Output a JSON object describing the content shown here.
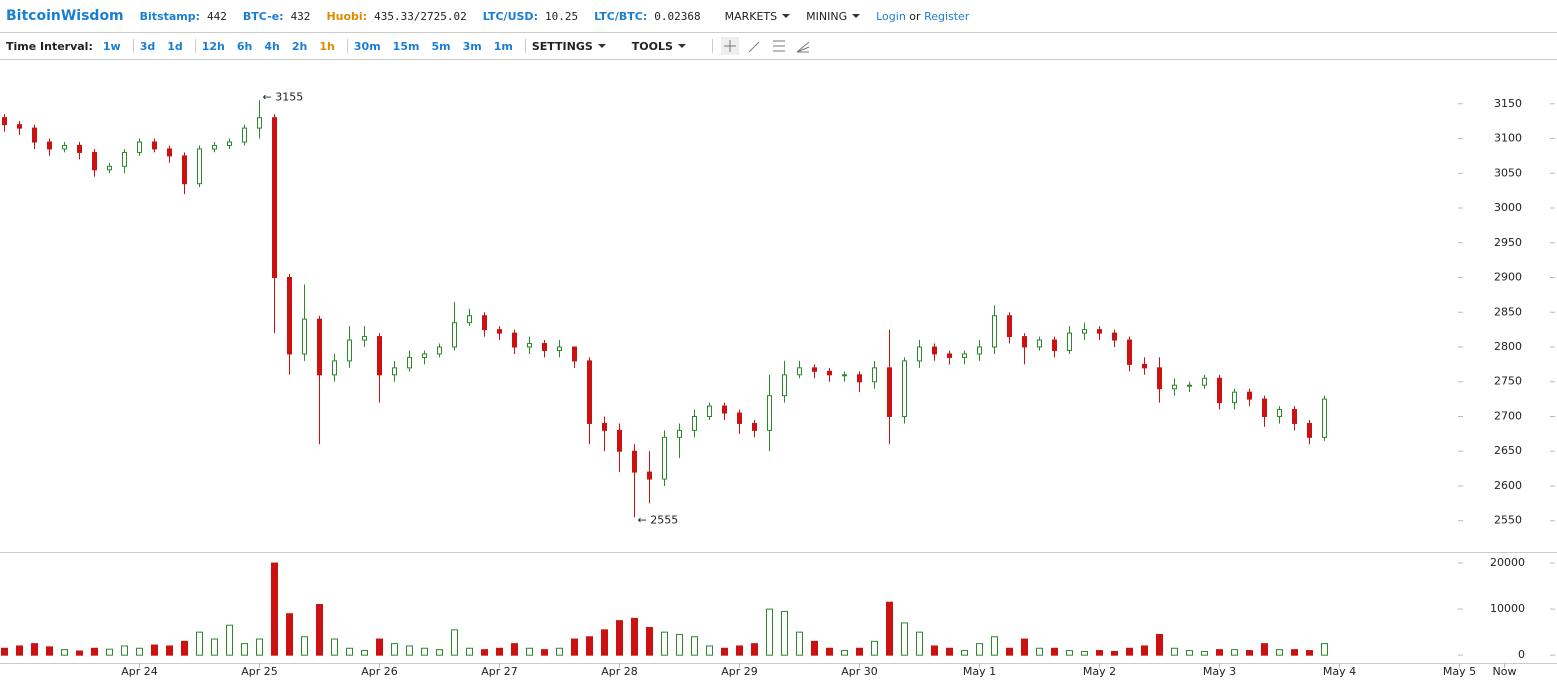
{
  "header": {
    "brand": "BitcoinWisdom",
    "quotes": [
      {
        "label": "Bitstamp:",
        "value": "442"
      },
      {
        "label": "BTC-e:",
        "value": "432"
      },
      {
        "label": "Huobi:",
        "value": "435.33/2725.02"
      },
      {
        "label": "LTC/USD:",
        "value": "10.25"
      },
      {
        "label": "LTC/BTC:",
        "value": "0.02368"
      }
    ],
    "menus": [
      "MARKETS",
      "MINING"
    ],
    "login": "Login",
    "or": "or",
    "register": "Register"
  },
  "toolbar": {
    "label": "Time Interval:",
    "intervals": [
      "1w",
      "3d",
      "1d",
      "12h",
      "6h",
      "4h",
      "2h",
      "1h",
      "30m",
      "15m",
      "5m",
      "3m",
      "1m"
    ],
    "selected": "1h",
    "settings": "SETTINGS",
    "tools": "TOOLS"
  },
  "chart_data": {
    "type": "candlestick",
    "up_color": "#2a8a2a",
    "down_color": "#cc1111",
    "xlim": [
      -0.3,
      103.5
    ],
    "xticks": [
      {
        "value": 9,
        "label": "Apr 24"
      },
      {
        "value": 17,
        "label": "Apr 25"
      },
      {
        "value": 25,
        "label": "Apr 26"
      },
      {
        "value": 33,
        "label": "Apr 27"
      },
      {
        "value": 41,
        "label": "Apr 28"
      },
      {
        "value": 49,
        "label": "Apr 29"
      },
      {
        "value": 57,
        "label": "Apr 30"
      },
      {
        "value": 65,
        "label": "May 1"
      },
      {
        "value": 73,
        "label": "May 2"
      },
      {
        "value": 81,
        "label": "May 3"
      },
      {
        "value": 89,
        "label": "May 4"
      },
      {
        "value": 97,
        "label": "May 5"
      },
      {
        "value": 100,
        "label": "Now"
      }
    ],
    "ylim": [
      2505,
      3213
    ],
    "yticks": [
      2550,
      2600,
      2650,
      2700,
      2750,
      2800,
      2850,
      2900,
      2950,
      3000,
      3050,
      3100,
      3150
    ],
    "y2lim": [
      -1700,
      22400
    ],
    "y2ticks": [
      0,
      10000,
      20000
    ],
    "annotations": [
      {
        "label": "← 3155",
        "value": 3155
      },
      {
        "label": "← 2555",
        "value": 2555
      }
    ],
    "open": [
      3130,
      3120,
      3115,
      3095,
      3085,
      3090,
      3080,
      3055,
      3060,
      3080,
      3095,
      3085,
      3075,
      3035,
      3085,
      3090,
      3095,
      3115,
      3130,
      2900,
      2790,
      2840,
      2760,
      2780,
      2810,
      2815,
      2760,
      2770,
      2785,
      2790,
      2800,
      2835,
      2845,
      2825,
      2820,
      2800,
      2805,
      2795,
      2800,
      2780,
      2690,
      2680,
      2650,
      2620,
      2610,
      2670,
      2680,
      2700,
      2715,
      2705,
      2690,
      2680,
      2730,
      2760,
      2770,
      2765,
      2760,
      2760,
      2750,
      2770,
      2700,
      2780,
      2800,
      2790,
      2785,
      2790,
      2800,
      2845,
      2815,
      2800,
      2810,
      2795,
      2820,
      2825,
      2820,
      2810,
      2775,
      2770,
      2740,
      2745,
      2745,
      2755,
      2720,
      2735,
      2725,
      2700,
      2710,
      2690,
      2670
    ],
    "high": [
      3135,
      3125,
      3120,
      3100,
      3095,
      3095,
      3085,
      3065,
      3085,
      3100,
      3100,
      3090,
      3080,
      3090,
      3095,
      3100,
      3120,
      3155,
      3135,
      2905,
      2890,
      2845,
      2790,
      2830,
      2830,
      2820,
      2780,
      2795,
      2795,
      2805,
      2865,
      2855,
      2850,
      2830,
      2825,
      2815,
      2810,
      2810,
      2800,
      2785,
      2700,
      2690,
      2660,
      2650,
      2680,
      2690,
      2710,
      2720,
      2720,
      2710,
      2695,
      2760,
      2780,
      2780,
      2775,
      2770,
      2765,
      2765,
      2780,
      2825,
      2785,
      2810,
      2805,
      2795,
      2795,
      2810,
      2860,
      2850,
      2820,
      2815,
      2815,
      2830,
      2835,
      2830,
      2825,
      2815,
      2785,
      2785,
      2755,
      2750,
      2760,
      2760,
      2740,
      2740,
      2730,
      2715,
      2715,
      2695,
      2730
    ],
    "low": [
      3110,
      3105,
      3085,
      3075,
      3080,
      3070,
      3045,
      3050,
      3050,
      3075,
      3080,
      3065,
      3020,
      3030,
      3080,
      3085,
      3090,
      3100,
      2820,
      2760,
      2780,
      2660,
      2750,
      2770,
      2800,
      2720,
      2750,
      2765,
      2775,
      2785,
      2795,
      2830,
      2815,
      2810,
      2790,
      2790,
      2785,
      2785,
      2770,
      2660,
      2650,
      2620,
      2555,
      2575,
      2600,
      2640,
      2670,
      2695,
      2695,
      2675,
      2670,
      2650,
      2720,
      2755,
      2755,
      2750,
      2750,
      2735,
      2740,
      2660,
      2690,
      2770,
      2780,
      2775,
      2775,
      2780,
      2790,
      2805,
      2775,
      2795,
      2785,
      2790,
      2810,
      2810,
      2800,
      2765,
      2760,
      2720,
      2730,
      2735,
      2740,
      2710,
      2710,
      2715,
      2685,
      2690,
      2680,
      2660,
      2665
    ],
    "close": [
      3120,
      3115,
      3095,
      3085,
      3090,
      3080,
      3055,
      3060,
      3080,
      3095,
      3085,
      3075,
      3035,
      3085,
      3090,
      3095,
      3115,
      3130,
      2900,
      2790,
      2840,
      2760,
      2780,
      2810,
      2815,
      2760,
      2770,
      2785,
      2790,
      2800,
      2835,
      2845,
      2825,
      2820,
      2800,
      2805,
      2795,
      2800,
      2780,
      2690,
      2680,
      2650,
      2620,
      2610,
      2670,
      2680,
      2700,
      2715,
      2705,
      2690,
      2680,
      2730,
      2760,
      2770,
      2765,
      2760,
      2760,
      2750,
      2770,
      2700,
      2780,
      2800,
      2790,
      2785,
      2790,
      2800,
      2845,
      2815,
      2800,
      2810,
      2795,
      2820,
      2825,
      2820,
      2810,
      2775,
      2770,
      2740,
      2745,
      2745,
      2755,
      2720,
      2735,
      2725,
      2700,
      2710,
      2690,
      2670,
      2725
    ],
    "volume": [
      1500,
      2000,
      2500,
      1800,
      1200,
      900,
      1500,
      1300,
      2000,
      1500,
      2200,
      2000,
      3000,
      5000,
      3500,
      6500,
      2500,
      3500,
      20000,
      9000,
      4000,
      11000,
      3500,
      1500,
      1000,
      3500,
      2500,
      2000,
      1500,
      1200,
      5500,
      1500,
      1200,
      1500,
      2500,
      1500,
      1200,
      1500,
      3500,
      4000,
      5500,
      7500,
      8000,
      6000,
      5000,
      4500,
      4000,
      2000,
      1500,
      2000,
      2500,
      10000,
      9500,
      5000,
      3000,
      1500,
      1000,
      1500,
      3000,
      11500,
      7000,
      5000,
      2000,
      1500,
      1000,
      2500,
      4000,
      1500,
      3500,
      1500,
      1500,
      1000,
      800,
      1000,
      800,
      1500,
      2000,
      4500,
      1500,
      1000,
      800,
      1200,
      1200,
      1000,
      2500,
      1200,
      1200,
      1000,
      2500
    ]
  }
}
